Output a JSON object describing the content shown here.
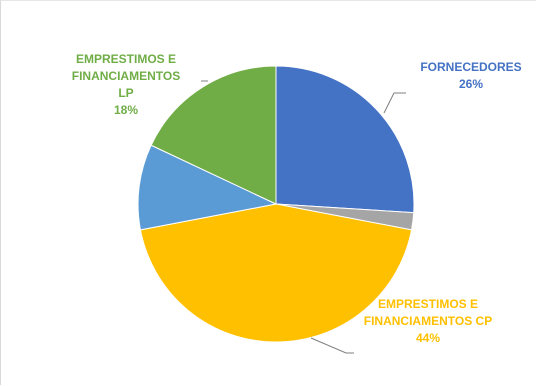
{
  "chart_data": {
    "type": "pie",
    "title": "",
    "legend": "none",
    "slices": [
      {
        "name": "FORNECEDORES",
        "value": 26,
        "label_lines": [
          "FORNECEDORES",
          "26%"
        ],
        "color": "#4472C4",
        "label_color": "#4472C4"
      },
      {
        "name": "",
        "value": 2,
        "label_lines": [],
        "color": "#A5A5A5",
        "label_color": "#A5A5A5"
      },
      {
        "name": "EMPRESTIMOS E FINANCIAMENTOS CP",
        "value": 44,
        "label_lines": [
          "EMPRESTIMOS E",
          "FINANCIAMENTOS CP",
          "44%"
        ],
        "color": "#FFC000",
        "label_color": "#FFC000"
      },
      {
        "name": "",
        "value": 10,
        "label_lines": [],
        "color": "#5B9BD5",
        "label_color": "#5B9BD5"
      },
      {
        "name": "EMPRESTIMOS E FINANCIAMENTOS LP",
        "value": 18,
        "label_lines": [
          "EMPRESTIMOS E",
          "FINANCIAMENTOS",
          "LP",
          "18%"
        ],
        "color": "#70AD47",
        "label_color": "#70AD47"
      }
    ],
    "leader_line_color": "#7f7f7f"
  }
}
